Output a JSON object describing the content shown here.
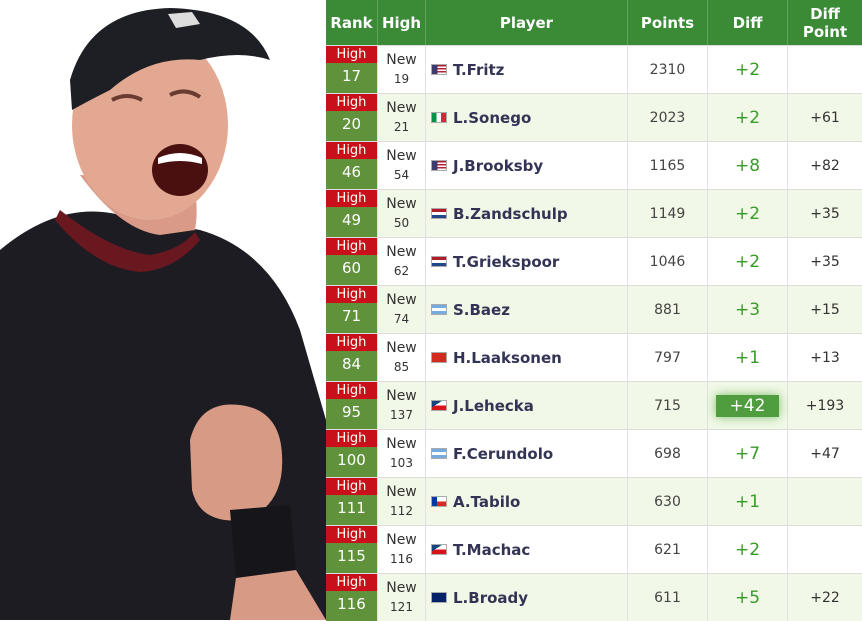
{
  "header": {
    "rank": "Rank",
    "high": "High",
    "player": "Player",
    "points": "Points",
    "diff": "Diff",
    "diff_point": "Diff Point"
  },
  "rows": [
    {
      "tag": "High",
      "rank": "17",
      "high_new": "New",
      "high": "19",
      "flag": "us",
      "player": "T.Fritz",
      "points": "2310",
      "diff": "+2",
      "diff_point": ""
    },
    {
      "tag": "High",
      "rank": "20",
      "high_new": "New",
      "high": "21",
      "flag": "it",
      "player": "L.Sonego",
      "points": "2023",
      "diff": "+2",
      "diff_point": "+61"
    },
    {
      "tag": "High",
      "rank": "46",
      "high_new": "New",
      "high": "54",
      "flag": "us",
      "player": "J.Brooksby",
      "points": "1165",
      "diff": "+8",
      "diff_point": "+82"
    },
    {
      "tag": "High",
      "rank": "49",
      "high_new": "New",
      "high": "50",
      "flag": "nl",
      "player": "B.Zandschulp",
      "points": "1149",
      "diff": "+2",
      "diff_point": "+35"
    },
    {
      "tag": "High",
      "rank": "60",
      "high_new": "New",
      "high": "62",
      "flag": "nl",
      "player": "T.Griekspoor",
      "points": "1046",
      "diff": "+2",
      "diff_point": "+35"
    },
    {
      "tag": "High",
      "rank": "71",
      "high_new": "New",
      "high": "74",
      "flag": "ar",
      "player": "S.Baez",
      "points": "881",
      "diff": "+3",
      "diff_point": "+15"
    },
    {
      "tag": "High",
      "rank": "84",
      "high_new": "New",
      "high": "85",
      "flag": "ch",
      "player": "H.Laaksonen",
      "points": "797",
      "diff": "+1",
      "diff_point": "+13"
    },
    {
      "tag": "High",
      "rank": "95",
      "high_new": "New",
      "high": "137",
      "flag": "cz",
      "player": "J.Lehecka",
      "points": "715",
      "diff": "+42",
      "diff_point": "+193",
      "highlight": true
    },
    {
      "tag": "High",
      "rank": "100",
      "high_new": "New",
      "high": "103",
      "flag": "ar",
      "player": "F.Cerundolo",
      "points": "698",
      "diff": "+7",
      "diff_point": "+47"
    },
    {
      "tag": "High",
      "rank": "111",
      "high_new": "New",
      "high": "112",
      "flag": "cl",
      "player": "A.Tabilo",
      "points": "630",
      "diff": "+1",
      "diff_point": ""
    },
    {
      "tag": "High",
      "rank": "115",
      "high_new": "New",
      "high": "116",
      "flag": "cz",
      "player": "T.Machac",
      "points": "621",
      "diff": "+2",
      "diff_point": ""
    },
    {
      "tag": "High",
      "rank": "116",
      "high_new": "New",
      "high": "121",
      "flag": "gb",
      "player": "L.Broady",
      "points": "611",
      "diff": "+5",
      "diff_point": "+22"
    }
  ],
  "colors": {
    "header_bg": "#3a8a36",
    "rank_bg": "#60923c",
    "tag_bg": "#c8101a",
    "diff_text": "#3a9a2a",
    "alt_row": "#f1f8e7"
  }
}
